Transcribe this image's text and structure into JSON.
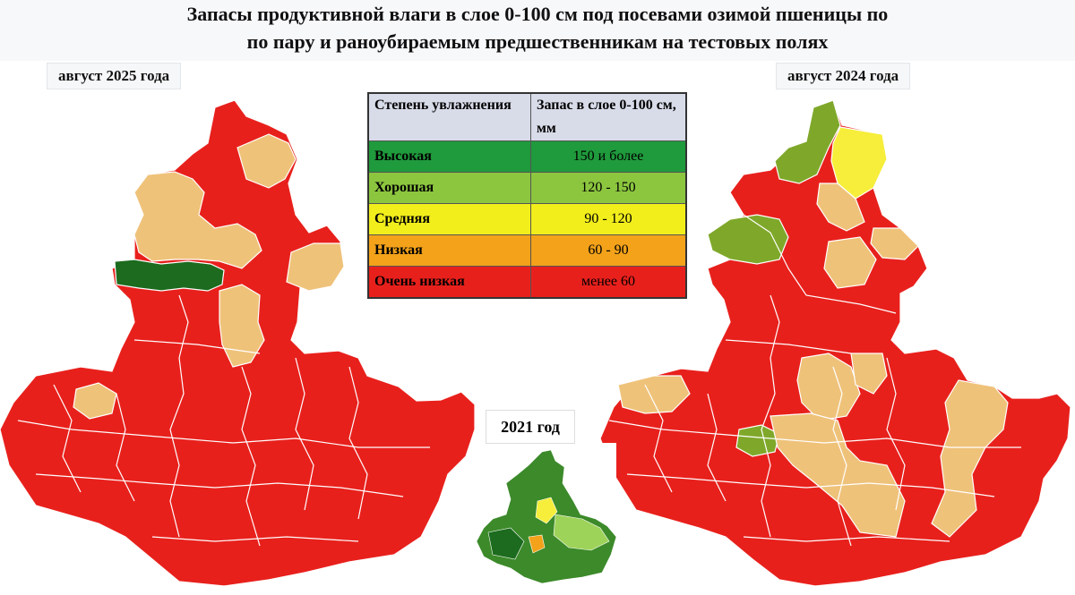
{
  "title": "Запасы продуктивной влаги в слое 0-100 см под посевами озимой пшеницы по\nпо пару и раноубираемым предшественникам на тестовых полях",
  "title_line1": "Запасы продуктивной влаги в слое 0-100 см под посевами озимой пшеницы по",
  "title_line2": "по пару и раноубираемым предшественникам на тестовых полях",
  "left_map_label": "август 2025 года",
  "right_map_label": "август 2024 года",
  "inset_label": "2021 год",
  "legend": {
    "header_col1": "Степень увлажнения",
    "header_col2": "Запас в слое 0-100 см, мм",
    "rows": [
      {
        "level": "Высокая",
        "range": "150 и более",
        "color": "#1f9a3c"
      },
      {
        "level": "Хорошая",
        "range": "120 - 150",
        "color": "#8cc63f"
      },
      {
        "level": "Средняя",
        "range": "90 - 120",
        "color": "#f2ee1c"
      },
      {
        "level": "Низкая",
        "range": "60 - 90",
        "color": "#f3a21a"
      },
      {
        "level": "Очень низкая",
        "range": "менее 60",
        "color": "#e8201c"
      }
    ]
  },
  "colors": {
    "very_low": "#e8201c",
    "low_map": "#efc27a",
    "medium": "#f6ee3a",
    "good": "#7fa82a",
    "high": "#1c6b1e",
    "border": "#ffffff"
  }
}
